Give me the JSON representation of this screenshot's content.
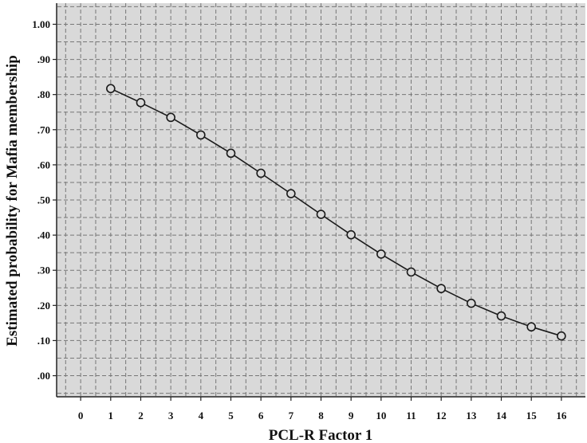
{
  "chart_data": {
    "type": "line",
    "title": "",
    "xlabel": "PCL-R Factor 1",
    "ylabel": "Estimated  probability for Mafia membership",
    "x_ticks": [
      "0",
      "1",
      "2",
      "3",
      "4",
      "5",
      "6",
      "7",
      "8",
      "9",
      "10",
      "11",
      "12",
      "13",
      "14",
      "15",
      "16"
    ],
    "y_ticks": [
      ".00",
      ".10",
      ".20",
      ".30",
      ".40",
      ".50",
      ".60",
      ".70",
      ".80",
      ".90",
      "1.00"
    ],
    "xlim": [
      -0.8,
      16.8
    ],
    "ylim": [
      -0.06,
      1.06
    ],
    "grid": true,
    "x": [
      1,
      2,
      3,
      4,
      5,
      6,
      7,
      8,
      9,
      10,
      11,
      12,
      13,
      14,
      15,
      16
    ],
    "y": [
      0.817,
      0.777,
      0.735,
      0.685,
      0.633,
      0.576,
      0.518,
      0.459,
      0.401,
      0.346,
      0.295,
      0.248,
      0.206,
      0.17,
      0.139,
      0.113
    ],
    "series_name": "",
    "colors": {
      "plot_bg": "#d9d9d9",
      "grid": "#777777",
      "line": "#1a1a1a",
      "marker_fill": "#d9d9d9"
    }
  }
}
